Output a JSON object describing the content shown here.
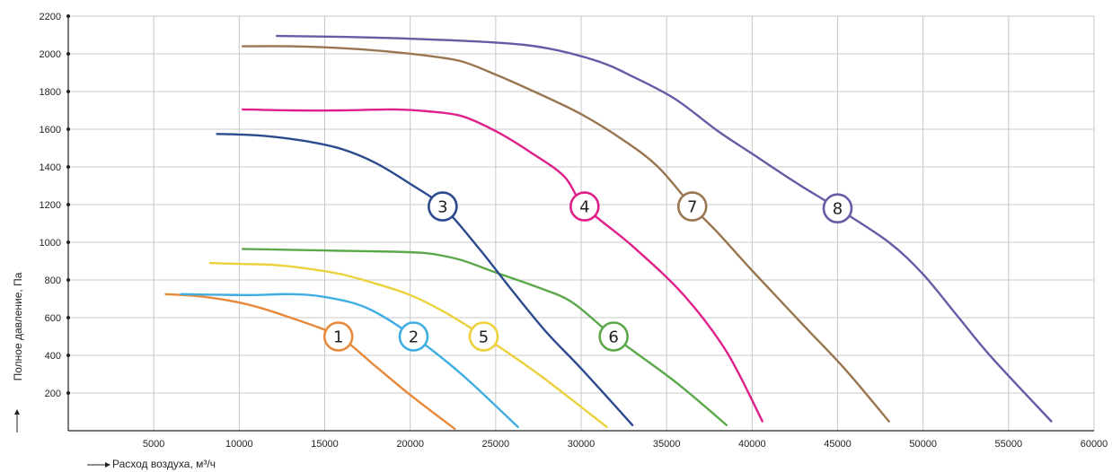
{
  "chart_data": {
    "type": "line",
    "xlabel": "Расход воздуха, м³/ч",
    "ylabel": "Полное давление, Па",
    "xlim": [
      0,
      60000
    ],
    "ylim": [
      0,
      2200
    ],
    "x_ticks": [
      "5000",
      "10000",
      "15000",
      "20000",
      "25000",
      "30000",
      "35000",
      "40000",
      "45000",
      "50000",
      "55000",
      "60000"
    ],
    "y_ticks": [
      "200",
      "400",
      "600",
      "800",
      "1000",
      "1200",
      "1400",
      "1600",
      "1800",
      "2000",
      "2200"
    ],
    "grid": true,
    "series": [
      {
        "name": "1",
        "color": "#e8893a",
        "label_at": [
          15800,
          500
        ],
        "points": [
          [
            5700,
            725
          ],
          [
            8000,
            710
          ],
          [
            10500,
            670
          ],
          [
            13000,
            600
          ],
          [
            15800,
            500
          ],
          [
            18000,
            340
          ],
          [
            20000,
            190
          ],
          [
            22600,
            10
          ]
        ]
      },
      {
        "name": "2",
        "color": "#3eaee2",
        "label_at": [
          20200,
          500
        ],
        "points": [
          [
            6600,
            725
          ],
          [
            8500,
            722
          ],
          [
            11000,
            720
          ],
          [
            13000,
            725
          ],
          [
            15000,
            710
          ],
          [
            17500,
            650
          ],
          [
            20200,
            500
          ],
          [
            23000,
            300
          ],
          [
            26300,
            20
          ]
        ]
      },
      {
        "name": "5",
        "color": "#ecd13c",
        "label_at": [
          24300,
          500
        ],
        "points": [
          [
            8300,
            890
          ],
          [
            10000,
            885
          ],
          [
            12000,
            880
          ],
          [
            14000,
            860
          ],
          [
            16000,
            830
          ],
          [
            18000,
            780
          ],
          [
            20000,
            720
          ],
          [
            22000,
            630
          ],
          [
            24300,
            500
          ],
          [
            27500,
            300
          ],
          [
            31500,
            20
          ]
        ]
      },
      {
        "name": "6",
        "color": "#5ba84a",
        "label_at": [
          31900,
          500
        ],
        "points": [
          [
            10200,
            965
          ],
          [
            13000,
            960
          ],
          [
            16000,
            955
          ],
          [
            19000,
            950
          ],
          [
            20500,
            945
          ],
          [
            21500,
            935
          ],
          [
            23000,
            905
          ],
          [
            25000,
            840
          ],
          [
            27500,
            760
          ],
          [
            29500,
            680
          ],
          [
            31900,
            500
          ],
          [
            35500,
            260
          ],
          [
            38500,
            30
          ]
        ]
      },
      {
        "name": "3",
        "color": "#2c4a8e",
        "label_at": [
          21900,
          1190
        ],
        "points": [
          [
            8700,
            1575
          ],
          [
            10500,
            1570
          ],
          [
            12000,
            1560
          ],
          [
            14000,
            1535
          ],
          [
            16000,
            1495
          ],
          [
            18000,
            1420
          ],
          [
            20000,
            1310
          ],
          [
            21900,
            1190
          ],
          [
            24000,
            970
          ],
          [
            26000,
            740
          ],
          [
            28000,
            520
          ],
          [
            30000,
            330
          ],
          [
            33000,
            30
          ]
        ]
      },
      {
        "name": "4",
        "color": "#e0208a",
        "label_at": [
          30200,
          1190
        ],
        "points": [
          [
            10200,
            1705
          ],
          [
            13000,
            1700
          ],
          [
            16000,
            1700
          ],
          [
            19000,
            1705
          ],
          [
            21000,
            1695
          ],
          [
            23000,
            1670
          ],
          [
            25000,
            1590
          ],
          [
            27000,
            1480
          ],
          [
            29000,
            1350
          ],
          [
            30200,
            1190
          ],
          [
            33000,
            980
          ],
          [
            36000,
            720
          ],
          [
            38500,
            420
          ],
          [
            40600,
            50
          ]
        ]
      },
      {
        "name": "7",
        "color": "#9a7650",
        "label_at": [
          36500,
          1190
        ],
        "points": [
          [
            10200,
            2040
          ],
          [
            13000,
            2040
          ],
          [
            16000,
            2030
          ],
          [
            19000,
            2010
          ],
          [
            21000,
            1990
          ],
          [
            23000,
            1960
          ],
          [
            25000,
            1890
          ],
          [
            27000,
            1810
          ],
          [
            30000,
            1680
          ],
          [
            32500,
            1540
          ],
          [
            34500,
            1400
          ],
          [
            36500,
            1190
          ],
          [
            38000,
            1050
          ],
          [
            40000,
            850
          ],
          [
            43000,
            560
          ],
          [
            45500,
            320
          ],
          [
            48000,
            50
          ]
        ]
      },
      {
        "name": "8",
        "color": "#6a5aa6",
        "label_at": [
          45000,
          1180
        ],
        "points": [
          [
            12200,
            2095
          ],
          [
            16000,
            2090
          ],
          [
            20000,
            2080
          ],
          [
            25000,
            2060
          ],
          [
            28000,
            2030
          ],
          [
            31000,
            1960
          ],
          [
            33000,
            1880
          ],
          [
            35500,
            1760
          ],
          [
            38000,
            1590
          ],
          [
            40000,
            1470
          ],
          [
            42500,
            1320
          ],
          [
            45000,
            1180
          ],
          [
            48000,
            1000
          ],
          [
            50000,
            830
          ],
          [
            52000,
            610
          ],
          [
            54000,
            390
          ],
          [
            57500,
            50
          ]
        ]
      }
    ]
  }
}
